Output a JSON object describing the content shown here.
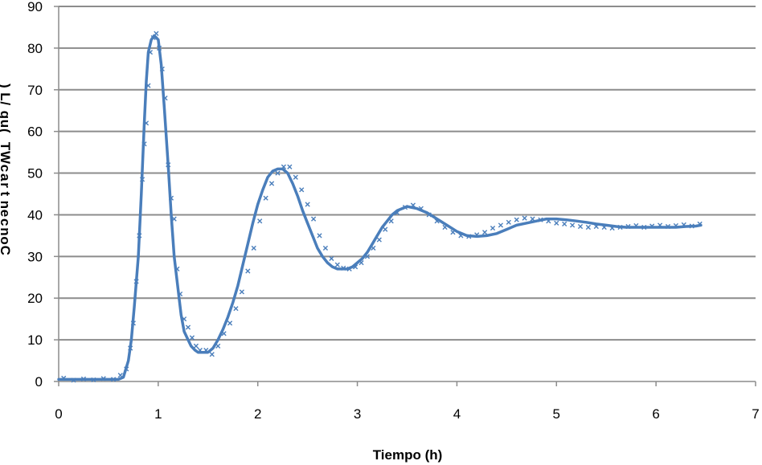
{
  "chart_data": {
    "type": "line",
    "title": "",
    "xlabel": "Tiempo (h)",
    "ylabel": "Concentracion WT (ug/L)",
    "ylabel_render": "Concentrac WT (ug/L)",
    "xlim": [
      0,
      7
    ],
    "ylim": [
      0,
      90
    ],
    "xticks": [
      0,
      1,
      2,
      3,
      4,
      5,
      6,
      7
    ],
    "yticks": [
      0,
      10,
      20,
      30,
      40,
      50,
      60,
      70,
      80,
      90
    ],
    "grid": "horizontal",
    "legend": "none",
    "series_color": "#4a7ebb",
    "series": [
      {
        "style": "line",
        "x": [
          0.0,
          0.1,
          0.2,
          0.3,
          0.4,
          0.5,
          0.6,
          0.65,
          0.7,
          0.73,
          0.76,
          0.8,
          0.83,
          0.86,
          0.88,
          0.9,
          0.93,
          0.96,
          1.0,
          1.03,
          1.06,
          1.1,
          1.13,
          1.16,
          1.2,
          1.23,
          1.26,
          1.3,
          1.33,
          1.37,
          1.4,
          1.45,
          1.5,
          1.55,
          1.6,
          1.65,
          1.7,
          1.75,
          1.8,
          1.85,
          1.9,
          1.95,
          2.0,
          2.05,
          2.1,
          2.15,
          2.2,
          2.25,
          2.3,
          2.35,
          2.4,
          2.45,
          2.5,
          2.55,
          2.6,
          2.65,
          2.7,
          2.75,
          2.8,
          2.85,
          2.9,
          2.95,
          3.0,
          3.05,
          3.1,
          3.15,
          3.2,
          3.25,
          3.3,
          3.35,
          3.4,
          3.5,
          3.6,
          3.7,
          3.8,
          3.9,
          4.0,
          4.1,
          4.2,
          4.3,
          4.4,
          4.5,
          4.6,
          4.7,
          4.8,
          4.9,
          5.0,
          5.1,
          5.2,
          5.3,
          5.4,
          5.5,
          5.6,
          5.7,
          5.8,
          5.9,
          6.0,
          6.1,
          6.2,
          6.3,
          6.4,
          6.45
        ],
        "y": [
          0.5,
          0.5,
          0.5,
          0.5,
          0.5,
          0.5,
          0.5,
          1.0,
          5.0,
          10.0,
          18.0,
          30.0,
          45.0,
          62.0,
          72.0,
          79.0,
          82.0,
          83.0,
          82.0,
          76.0,
          66.0,
          52.0,
          40.0,
          30.0,
          22.0,
          16.0,
          12.0,
          10.0,
          8.5,
          7.5,
          7.0,
          7.0,
          7.0,
          8.0,
          10.0,
          12.5,
          15.5,
          19.0,
          23.0,
          28.0,
          33.0,
          38.0,
          42.5,
          46.0,
          49.0,
          50.5,
          51.0,
          51.0,
          50.0,
          47.5,
          44.5,
          41.0,
          38.0,
          35.0,
          32.0,
          30.0,
          28.5,
          27.5,
          27.0,
          27.0,
          27.0,
          27.5,
          28.5,
          29.5,
          31.0,
          33.0,
          35.0,
          37.0,
          38.5,
          40.0,
          41.0,
          42.0,
          41.5,
          40.5,
          39.0,
          37.5,
          36.0,
          35.0,
          34.8,
          35.0,
          35.5,
          36.5,
          37.5,
          38.0,
          38.5,
          39.0,
          39.0,
          38.8,
          38.5,
          38.2,
          37.8,
          37.5,
          37.2,
          37.0,
          37.0,
          37.0,
          37.0,
          37.0,
          37.0,
          37.2,
          37.3,
          37.5
        ]
      },
      {
        "style": "markers",
        "x": [
          0.05,
          0.15,
          0.25,
          0.35,
          0.45,
          0.55,
          0.62,
          0.68,
          0.72,
          0.75,
          0.78,
          0.81,
          0.84,
          0.86,
          0.88,
          0.9,
          0.92,
          0.95,
          0.98,
          1.01,
          1.04,
          1.07,
          1.1,
          1.13,
          1.16,
          1.19,
          1.22,
          1.26,
          1.3,
          1.34,
          1.38,
          1.42,
          1.48,
          1.54,
          1.6,
          1.66,
          1.72,
          1.78,
          1.84,
          1.9,
          1.96,
          2.02,
          2.08,
          2.14,
          2.2,
          2.26,
          2.32,
          2.38,
          2.44,
          2.5,
          2.56,
          2.62,
          2.68,
          2.74,
          2.8,
          2.86,
          2.92,
          2.98,
          3.04,
          3.1,
          3.16,
          3.22,
          3.28,
          3.34,
          3.4,
          3.48,
          3.56,
          3.64,
          3.72,
          3.8,
          3.88,
          3.96,
          4.04,
          4.12,
          4.2,
          4.28,
          4.36,
          4.44,
          4.52,
          4.6,
          4.68,
          4.76,
          4.84,
          4.92,
          5.0,
          5.08,
          5.16,
          5.24,
          5.32,
          5.4,
          5.48,
          5.56,
          5.64,
          5.72,
          5.8,
          5.88,
          5.96,
          6.04,
          6.12,
          6.2,
          6.28,
          6.36,
          6.44
        ],
        "y": [
          0.8,
          0.3,
          0.6,
          0.4,
          0.7,
          0.5,
          1.5,
          3.0,
          8.0,
          14.0,
          24.0,
          35.0,
          48.5,
          57.0,
          62.0,
          71.0,
          79.0,
          82.5,
          83.5,
          80.0,
          75.0,
          68.0,
          52.0,
          44.0,
          39.0,
          27.0,
          21.0,
          15.0,
          13.0,
          10.5,
          8.5,
          7.5,
          7.5,
          6.5,
          8.5,
          11.5,
          14.0,
          17.5,
          21.5,
          26.5,
          32.0,
          38.5,
          44.0,
          47.5,
          50.0,
          51.5,
          51.5,
          49.0,
          46.0,
          42.5,
          39.0,
          35.0,
          32.0,
          29.5,
          28.0,
          27.2,
          27.0,
          27.5,
          28.5,
          30.0,
          32.0,
          34.0,
          36.5,
          38.5,
          40.5,
          41.8,
          42.3,
          41.5,
          40.0,
          38.5,
          37.0,
          35.8,
          35.0,
          34.8,
          35.2,
          35.8,
          36.8,
          37.5,
          38.2,
          38.8,
          39.2,
          39.0,
          38.8,
          38.5,
          38.0,
          37.8,
          37.5,
          37.2,
          37.0,
          37.2,
          37.0,
          36.8,
          37.0,
          37.2,
          37.4,
          37.0,
          37.3,
          37.5,
          37.2,
          37.4,
          37.6,
          37.3,
          37.8
        ]
      }
    ]
  }
}
